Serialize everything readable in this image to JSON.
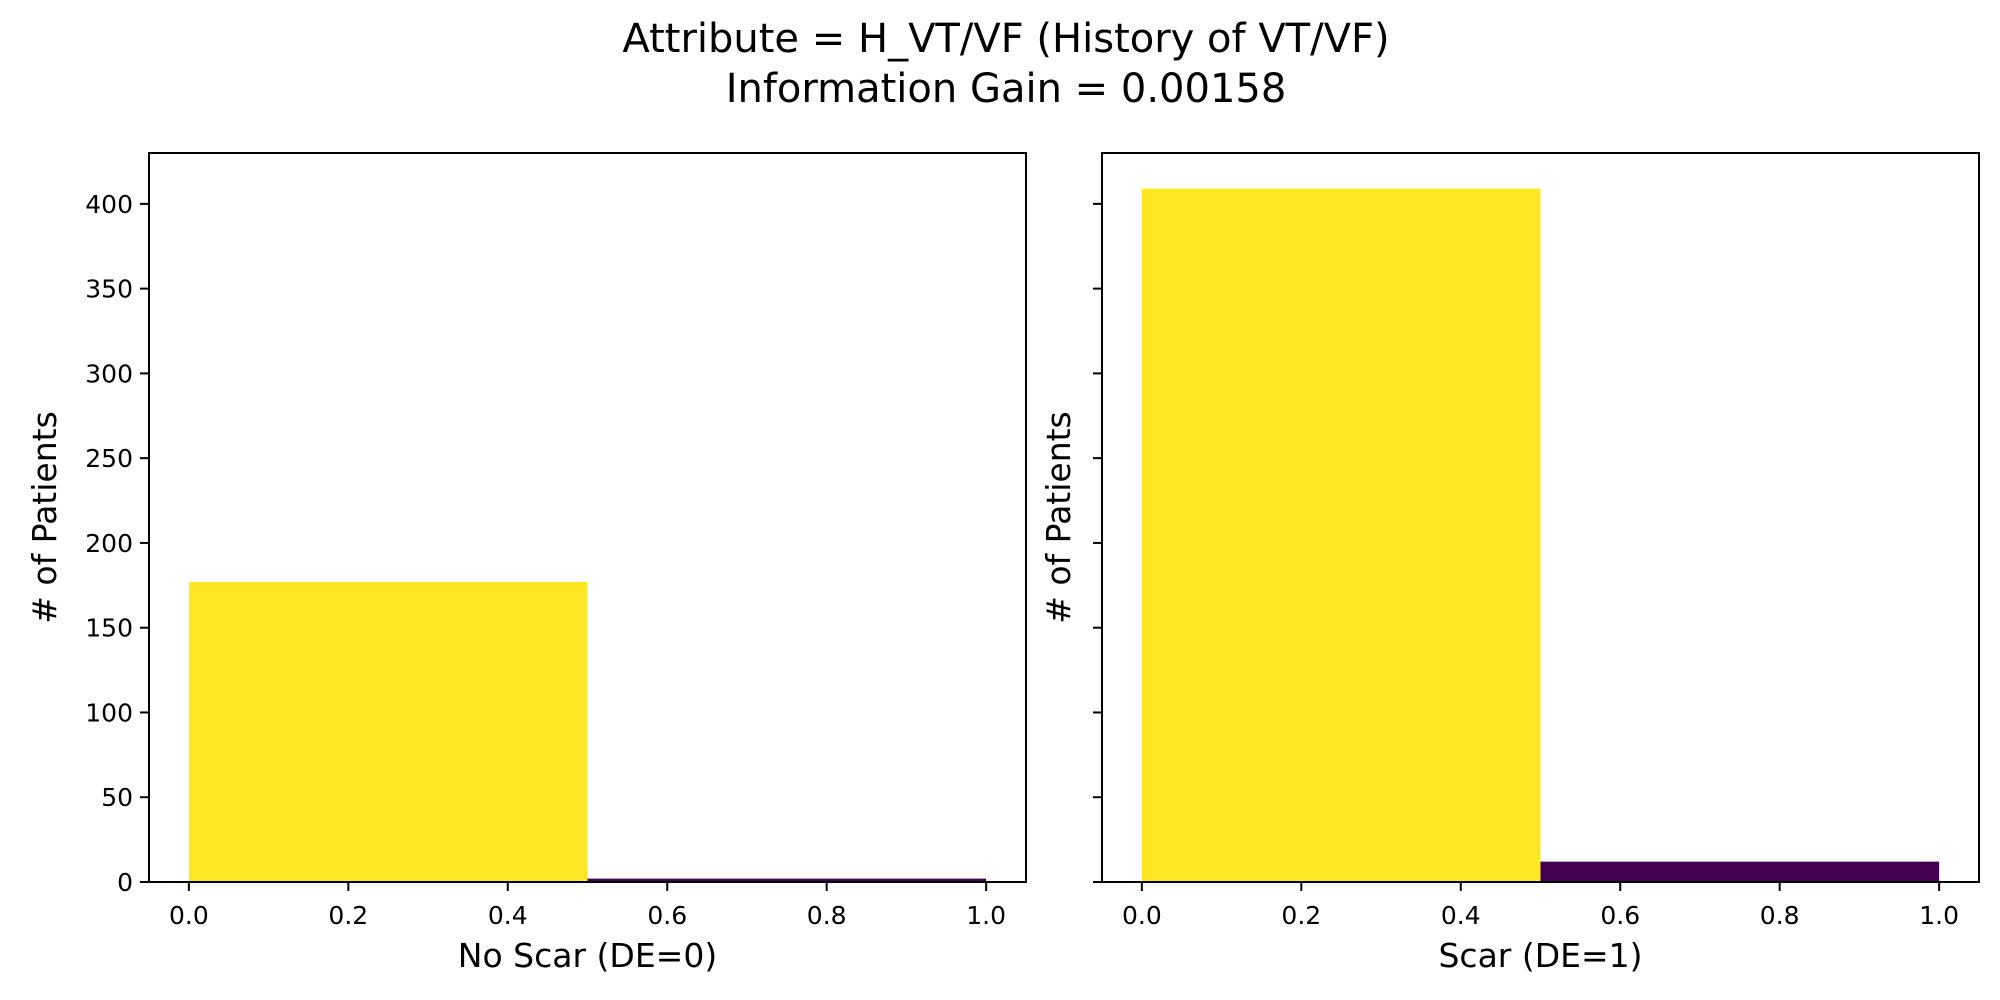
{
  "title_line1": "Attribute = H_VT/VF (History of VT/VF)",
  "title_line2": "Information Gain = 0.00158",
  "colors": {
    "bar_yes": "#fde725",
    "bar_no": "#440154",
    "axes": "#000000"
  },
  "chart_data": [
    {
      "type": "bar",
      "subplot": "left",
      "xlabel": "No Scar (DE=0)",
      "ylabel": "# of Patients",
      "xlim": [
        -0.05,
        1.05
      ],
      "ylim": [
        0,
        430
      ],
      "xticks": [
        "0.0",
        "0.2",
        "0.4",
        "0.6",
        "0.8",
        "1.0"
      ],
      "yticks": [
        "0",
        "50",
        "100",
        "150",
        "200",
        "250",
        "300",
        "350",
        "400"
      ],
      "show_ytick_labels": true,
      "bins": [
        {
          "x0": 0.0,
          "x1": 0.5,
          "value": 177,
          "color": "#fde725"
        },
        {
          "x0": 0.5,
          "x1": 1.0,
          "value": 2,
          "color": "#440154"
        }
      ]
    },
    {
      "type": "bar",
      "subplot": "right",
      "xlabel": "Scar (DE=1)",
      "ylabel": "# of Patients",
      "xlim": [
        -0.05,
        1.05
      ],
      "ylim": [
        0,
        430
      ],
      "xticks": [
        "0.0",
        "0.2",
        "0.4",
        "0.6",
        "0.8",
        "1.0"
      ],
      "yticks": [
        "0",
        "50",
        "100",
        "150",
        "200",
        "250",
        "300",
        "350",
        "400"
      ],
      "show_ytick_labels": false,
      "bins": [
        {
          "x0": 0.0,
          "x1": 0.5,
          "value": 409,
          "color": "#fde725"
        },
        {
          "x0": 0.5,
          "x1": 1.0,
          "value": 12,
          "color": "#440154"
        }
      ]
    }
  ]
}
